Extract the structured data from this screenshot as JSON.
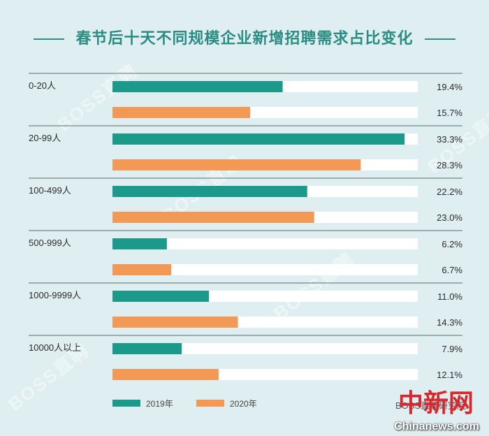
{
  "chart_data": {
    "type": "bar",
    "orientation": "horizontal",
    "title": "春节后十天不同规模企业新增招聘需求占比变化",
    "categories": [
      "0-20人",
      "20-99人",
      "100-499人",
      "500-999人",
      "1000-9999人",
      "10000人以上"
    ],
    "series": [
      {
        "name": "2019年",
        "color": "#1b9a8c",
        "values": [
          19.4,
          33.3,
          22.2,
          6.2,
          11.0,
          7.9
        ],
        "labels": [
          "19.4%",
          "33.3%",
          "22.2%",
          "6.2%",
          "11.0%",
          "7.9%"
        ]
      },
      {
        "name": "2020年",
        "color": "#f29a55",
        "values": [
          15.7,
          28.3,
          23.0,
          6.7,
          14.3,
          12.1
        ],
        "labels": [
          "15.7%",
          "28.3%",
          "23.0%",
          "6.7%",
          "14.3%",
          "12.1%"
        ]
      }
    ],
    "xlim": [
      0,
      34.8
    ],
    "grid": false,
    "legend_position": "bottom-left",
    "track_color": "#ffffff",
    "separator_color": "#5a6c6c"
  },
  "watermark_text": "BOSS直聘",
  "source_text": "BOSS直聘研究院",
  "logo_text": "中新网",
  "site_text": "Chinanews.com"
}
